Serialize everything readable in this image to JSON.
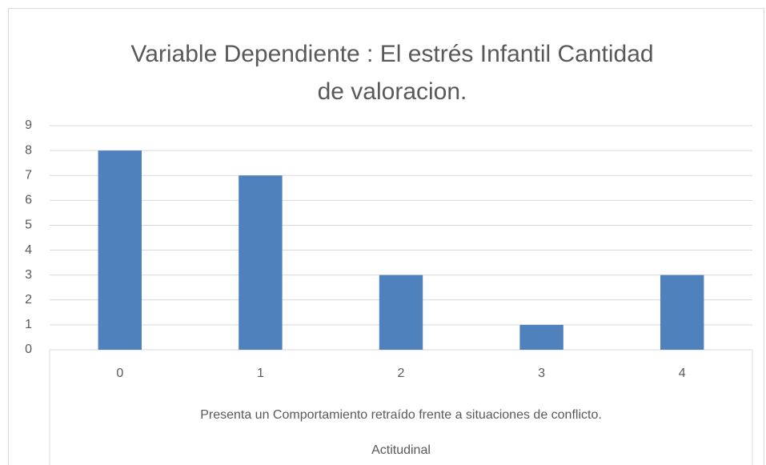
{
  "chart_data": {
    "type": "bar",
    "title": "Variable Dependiente : El estrés Infantil Cantidad de valoracion.",
    "categories": [
      "0",
      "1",
      "2",
      "3",
      "4"
    ],
    "values": [
      8,
      7,
      3,
      1,
      3
    ],
    "x_axis_levels": [
      "Presenta un Comportamiento retraído frente a situaciones de conflicto.",
      "Actitudinal"
    ],
    "color": "#4f81bd",
    "ylim": [
      0,
      9
    ],
    "yticks": [
      0,
      1,
      2,
      3,
      4,
      5,
      6,
      7,
      8,
      9
    ],
    "grid": true
  }
}
